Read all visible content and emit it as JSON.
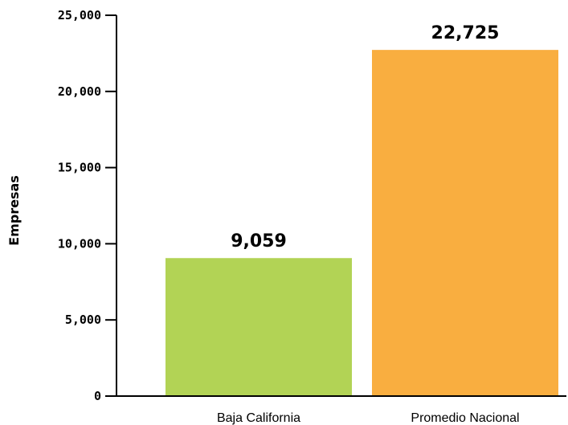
{
  "chart_data": {
    "type": "bar",
    "categories": [
      "Baja California",
      "Promedio Nacional"
    ],
    "values": [
      9059,
      22725
    ],
    "value_labels": [
      "9,059",
      "22,725"
    ],
    "colors": [
      "#b2d355",
      "#f9ae40"
    ],
    "ylabel": "Empresas",
    "xlabel": "",
    "ylim": [
      0,
      25000
    ],
    "yticks": [
      0,
      5000,
      10000,
      15000,
      20000,
      25000
    ],
    "ytick_labels": [
      "0",
      "5,000",
      "10,000",
      "15,000",
      "20,000",
      "25,000"
    ],
    "grid": false,
    "legend": "none"
  }
}
